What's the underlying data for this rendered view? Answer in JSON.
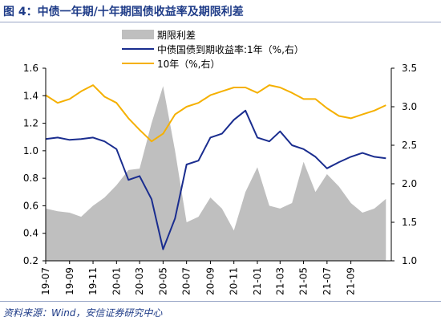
{
  "title": "图 4：中债一年期/十年期国债收益率及期限利差",
  "source": "资料来源：Wind，安信证券研究中心",
  "colors": {
    "spread": "#bfbfbf",
    "y1": "#1a2d8f",
    "y10": "#f5b000",
    "title": "#1f3c88"
  },
  "chart_data": {
    "type": "area",
    "legend_position": "top",
    "grid": false,
    "x_tick_labels": [
      "19-07",
      "19-09",
      "19-11",
      "20-01",
      "20-03",
      "20-05",
      "20-07",
      "20-09",
      "20-11",
      "21-01",
      "21-03",
      "21-05",
      "21-07",
      "21-09"
    ],
    "y_left": {
      "ylim": [
        0.2,
        1.6
      ],
      "ticks": [
        "0.2",
        "0.4",
        "0.6",
        "0.8",
        "1.0",
        "1.2",
        "1.4",
        "1.6"
      ]
    },
    "y_right": {
      "ylim": [
        1.0,
        3.5
      ],
      "ticks": [
        "1.0",
        "1.5",
        "2.0",
        "2.5",
        "3.0",
        "3.5"
      ]
    },
    "series": [
      {
        "name": "期限利差",
        "type": "area",
        "axis": "left",
        "x": [
          "2019-07",
          "2019-08",
          "2019-09",
          "2019-10",
          "2019-11",
          "2019-12",
          "2020-01",
          "2020-02",
          "2020-03",
          "2020-04",
          "2020-05",
          "2020-06",
          "2020-07",
          "2020-08",
          "2020-09",
          "2020-10",
          "2020-11",
          "2020-12",
          "2021-01",
          "2021-02",
          "2021-03",
          "2021-04",
          "2021-05",
          "2021-06",
          "2021-07",
          "2021-08",
          "2021-09",
          "2021-10",
          "2021-11",
          "2021-12"
        ],
        "values": [
          0.58,
          0.56,
          0.55,
          0.52,
          0.6,
          0.66,
          0.75,
          0.86,
          0.87,
          1.2,
          1.47,
          1.0,
          0.48,
          0.52,
          0.66,
          0.58,
          0.42,
          0.7,
          0.88,
          0.6,
          0.58,
          0.62,
          0.92,
          0.7,
          0.83,
          0.74,
          0.62,
          0.55,
          0.58,
          0.65
        ]
      },
      {
        "name": "中债国债到期收益率:1年（%,右）",
        "type": "line",
        "axis": "right",
        "x": [
          "2019-07",
          "2019-08",
          "2019-09",
          "2019-10",
          "2019-11",
          "2019-12",
          "2020-01",
          "2020-02",
          "2020-03",
          "2020-04",
          "2020-05",
          "2020-06",
          "2020-07",
          "2020-08",
          "2020-09",
          "2020-10",
          "2020-11",
          "2020-12",
          "2021-01",
          "2021-02",
          "2021-03",
          "2021-04",
          "2021-05",
          "2021-06",
          "2021-07",
          "2021-08",
          "2021-09",
          "2021-10",
          "2021-11",
          "2021-12"
        ],
        "values": [
          2.58,
          2.6,
          2.57,
          2.58,
          2.6,
          2.55,
          2.45,
          2.05,
          2.1,
          1.8,
          1.15,
          1.55,
          2.25,
          2.3,
          2.6,
          2.65,
          2.83,
          2.95,
          2.6,
          2.55,
          2.68,
          2.5,
          2.45,
          2.35,
          2.2,
          2.28,
          2.35,
          2.4,
          2.35,
          2.33
        ]
      },
      {
        "name": "10年（%,右）",
        "type": "line",
        "axis": "right",
        "x": [
          "2019-07",
          "2019-08",
          "2019-09",
          "2019-10",
          "2019-11",
          "2019-12",
          "2020-01",
          "2020-02",
          "2020-03",
          "2020-04",
          "2020-05",
          "2020-06",
          "2020-07",
          "2020-08",
          "2020-09",
          "2020-10",
          "2020-11",
          "2020-12",
          "2021-01",
          "2021-02",
          "2021-03",
          "2021-04",
          "2021-05",
          "2021-06",
          "2021-07",
          "2021-08",
          "2021-09",
          "2021-10",
          "2021-11",
          "2021-12"
        ],
        "values": [
          3.15,
          3.05,
          3.1,
          3.2,
          3.28,
          3.13,
          3.05,
          2.85,
          2.7,
          2.55,
          2.65,
          2.9,
          3.0,
          3.05,
          3.15,
          3.2,
          3.25,
          3.25,
          3.18,
          3.28,
          3.25,
          3.18,
          3.1,
          3.1,
          2.98,
          2.88,
          2.85,
          2.9,
          2.95,
          3.02
        ]
      }
    ]
  }
}
